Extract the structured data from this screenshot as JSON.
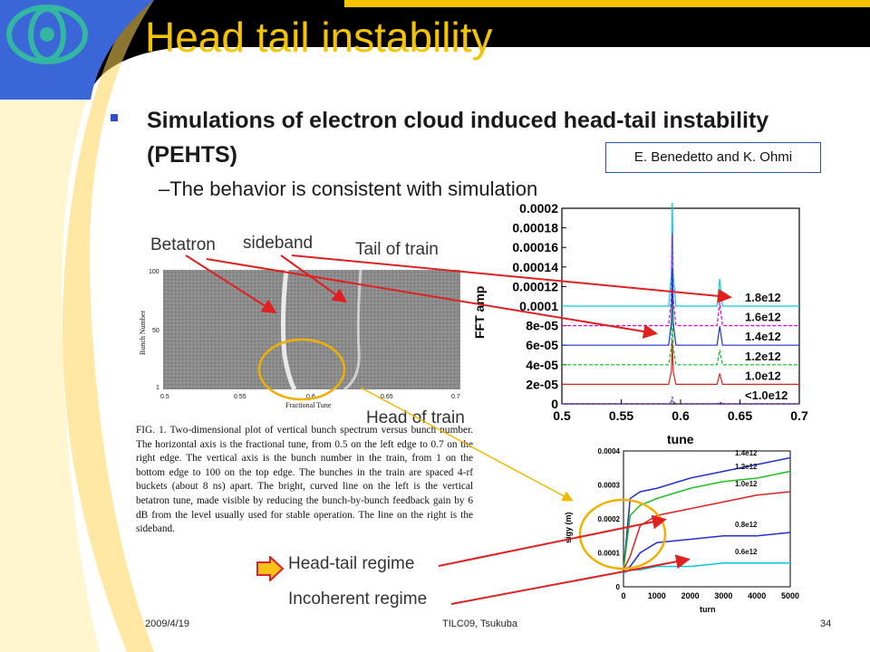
{
  "slide": {
    "title": "Head tail instability",
    "bullet": "Simulations of electron cloud induced head-tail instability (PEHTS)",
    "sub_bullet": "–The behavior is consistent with simulation",
    "credit": "E. Benedetto and K. Ohmi"
  },
  "annotations": {
    "betatron": "Betatron",
    "sideband": "sideband",
    "tail_of_train": "Tail of train",
    "head_of_train": "Head of train",
    "head_tail_regime": "Head-tail regime",
    "incoherent_regime": "Incoherent regime"
  },
  "spectrum_plot": {
    "ylabel": "Bunch Number",
    "xlabel": "Fractional Tune",
    "y_ticks": [
      "100",
      "50",
      "1"
    ],
    "x_ticks": [
      "0.5",
      "0.55",
      "0.6",
      "0.65",
      "0.7"
    ]
  },
  "caption": "FIG. 1. Two-dimensional plot of vertical bunch spectrum versus bunch number. The horizontal axis is the fractional tune, from 0.5 on the left edge to 0.7 on the right edge. The vertical axis is the bunch number in the train, from 1 on the bottom edge to 100 on the top edge. The bunches in the train are spaced 4-rf buckets (about 8 ns) apart. The bright, curved line on the left is the vertical betatron tune, made visible by reducing the bunch-by-bunch feedback gain by 6 dB from the level usually used for stable operation. The line on the right is the sideband.",
  "footer": {
    "date": "2009/4/19",
    "event": "TILC09, Tsukuba",
    "page": "34"
  },
  "chart_data": [
    {
      "type": "line",
      "xlabel": "tune",
      "ylabel": "FFT amp",
      "x_ticks": [
        "0.5",
        "0.55",
        "0.6",
        "0.65",
        "0.7"
      ],
      "y_ticks": [
        "0.0002",
        "0.00018",
        "0.00016",
        "0.00014",
        "0.00012",
        "0.0001",
        "8e-05",
        "6e-05",
        "4e-05",
        "2e-05",
        "0"
      ],
      "xlim": [
        0.5,
        0.7
      ],
      "ylim": [
        0,
        0.0002
      ],
      "series": [
        {
          "name": "1.8e12",
          "color": "#00d0e0",
          "baseline": 0.0001
        },
        {
          "name": "1.6e12",
          "color": "#e000e0",
          "baseline": 8e-05
        },
        {
          "name": "1.4e12",
          "color": "#2030d0",
          "baseline": 6e-05
        },
        {
          "name": "1.2e12",
          "color": "#00c020",
          "baseline": 4e-05
        },
        {
          "name": "1.0e12",
          "color": "#e02020",
          "baseline": 2e-05
        },
        {
          "name": "<1.0e12",
          "color": "#7020c0",
          "baseline": 0.0
        }
      ]
    },
    {
      "type": "line",
      "xlabel": "turn",
      "ylabel": "sigy (m)",
      "x_ticks": [
        "0",
        "1000",
        "2000",
        "3000",
        "4000",
        "5000"
      ],
      "y_ticks": [
        "0.0004",
        "0.0003",
        "0.0002",
        "0.0001",
        "0"
      ],
      "xlim": [
        0,
        5000
      ],
      "ylim": [
        0,
        0.0004
      ],
      "series": [
        {
          "name": "1.4e12",
          "color": "#2030d0",
          "x": [
            0,
            200,
            500,
            1000,
            2000,
            3000,
            4000,
            5000
          ],
          "y": [
            5e-05,
            0.00026,
            0.00028,
            0.00029,
            0.00032,
            0.00034,
            0.00036,
            0.00038
          ]
        },
        {
          "name": "1.2e12",
          "color": "#20c020",
          "x": [
            0,
            200,
            500,
            1000,
            2000,
            3000,
            4000,
            5000
          ],
          "y": [
            5e-05,
            0.00021,
            0.00024,
            0.00026,
            0.00029,
            0.00031,
            0.00032,
            0.00034
          ]
        },
        {
          "name": "1.0e12",
          "color": "#e02020",
          "x": [
            0,
            200,
            500,
            1000,
            2000,
            3000,
            4000,
            5000
          ],
          "y": [
            5e-05,
            9e-05,
            0.00018,
            0.00021,
            0.00023,
            0.00025,
            0.00027,
            0.00028
          ]
        },
        {
          "name": "0.8e12",
          "color": "#2030d0",
          "x": [
            0,
            200,
            500,
            1000,
            2000,
            3000,
            4000,
            5000
          ],
          "y": [
            5e-05,
            6e-05,
            0.0001,
            0.00013,
            0.00014,
            0.00015,
            0.00015,
            0.00016
          ]
        },
        {
          "name": "0.6e12",
          "color": "#00c8d8",
          "x": [
            0,
            200,
            500,
            1000,
            2000,
            3000,
            4000,
            5000
          ],
          "y": [
            4e-05,
            5e-05,
            5e-05,
            6e-05,
            6e-05,
            7e-05,
            7e-05,
            7e-05
          ]
        }
      ]
    }
  ]
}
